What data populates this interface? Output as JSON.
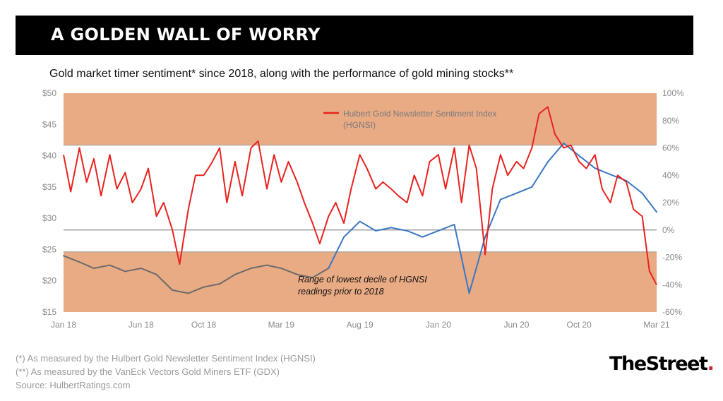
{
  "header": {
    "title": "A GOLDEN WALL OF WORRY",
    "subtitle": "Gold market timer sentiment* since 2018, along with the performance of gold mining stocks**"
  },
  "footer": {
    "notes": [
      "(*) As measured by the Hulbert Gold Newsletter Sentiment Index (HGNSI)",
      "(**) As measured by the VanEck Vectors Gold Miners ETF (GDX)",
      "Source: HulbertRatings.com"
    ],
    "logo_text": "TheStreet",
    "logo_dot": "."
  },
  "chart_data": {
    "type": "line",
    "x_axis": {
      "unit": "month",
      "range": [
        "2018-01-01",
        "2021-03-01"
      ],
      "tick_labels": [
        "Jan 18",
        "Jun 18",
        "Oct 18",
        "Mar 19",
        "Aug 19",
        "Jan 20",
        "Jun 20",
        "Oct 20",
        "Mar 21"
      ],
      "tick_dates": [
        "2018-01-01",
        "2018-06-01",
        "2018-10-01",
        "2019-03-01",
        "2019-08-01",
        "2020-01-01",
        "2020-06-01",
        "2020-10-01",
        "2021-03-01"
      ]
    },
    "y_left": {
      "tick_labels": [
        "$50",
        "$45",
        "$40",
        "$35",
        "$30",
        "$25",
        "$20",
        "$15"
      ],
      "range": [
        15,
        50
      ]
    },
    "y_right": {
      "tick_labels": [
        "100%",
        "80%",
        "60%",
        "40%",
        "20%",
        "0%",
        "-20%",
        "-40%",
        "-60%"
      ],
      "range": [
        -60,
        100
      ]
    },
    "bands": [
      {
        "from": 62,
        "to": 100,
        "color": "#e9ab84",
        "axis": "right"
      },
      {
        "from": -60,
        "to": -16,
        "color": "#e9ab84",
        "axis": "right",
        "label": "Range of lowest decile of HGNSI readings prior to 2018"
      }
    ],
    "zero_line": 0,
    "legend_position": "top-center",
    "series": [
      {
        "name": "Hulbert Gold Newsletter Sentiment Index (HGNSI)",
        "axis": "right",
        "color": "#e8231f",
        "x": [
          "2018-01-01",
          "2018-01-15",
          "2018-02-01",
          "2018-02-15",
          "2018-03-01",
          "2018-03-15",
          "2018-04-01",
          "2018-04-15",
          "2018-05-01",
          "2018-05-15",
          "2018-06-01",
          "2018-06-15",
          "2018-07-01",
          "2018-07-15",
          "2018-08-01",
          "2018-08-15",
          "2018-09-01",
          "2018-09-15",
          "2018-10-01",
          "2018-10-15",
          "2018-11-01",
          "2018-11-15",
          "2018-12-01",
          "2018-12-15",
          "2019-01-01",
          "2019-01-15",
          "2019-02-01",
          "2019-02-15",
          "2019-03-01",
          "2019-03-15",
          "2019-04-01",
          "2019-04-15",
          "2019-05-01",
          "2019-05-15",
          "2019-06-01",
          "2019-06-15",
          "2019-07-01",
          "2019-07-15",
          "2019-08-01",
          "2019-08-15",
          "2019-09-01",
          "2019-09-15",
          "2019-10-01",
          "2019-10-15",
          "2019-11-01",
          "2019-11-15",
          "2019-12-01",
          "2019-12-15",
          "2020-01-01",
          "2020-01-15",
          "2020-02-01",
          "2020-02-15",
          "2020-03-01",
          "2020-03-15",
          "2020-04-01",
          "2020-04-15",
          "2020-05-01",
          "2020-05-15",
          "2020-06-01",
          "2020-06-15",
          "2020-07-01",
          "2020-07-15",
          "2020-08-01",
          "2020-08-15",
          "2020-09-01",
          "2020-09-15",
          "2020-10-01",
          "2020-10-15",
          "2020-11-01",
          "2020-11-15",
          "2020-12-01",
          "2020-12-15",
          "2021-01-01",
          "2021-01-15",
          "2021-02-01",
          "2021-02-15",
          "2021-03-01"
        ],
        "values": [
          55,
          28,
          60,
          35,
          52,
          25,
          55,
          30,
          42,
          20,
          30,
          45,
          10,
          20,
          0,
          -25,
          15,
          40,
          40,
          48,
          60,
          20,
          50,
          25,
          60,
          65,
          30,
          55,
          35,
          50,
          35,
          20,
          5,
          -10,
          10,
          20,
          5,
          30,
          55,
          45,
          30,
          35,
          30,
          25,
          20,
          40,
          25,
          50,
          55,
          30,
          60,
          20,
          62,
          45,
          -18,
          30,
          55,
          40,
          50,
          45,
          60,
          85,
          90,
          70,
          60,
          62,
          50,
          45,
          55,
          30,
          20,
          40,
          35,
          15,
          10,
          -30,
          -40
        ]
      },
      {
        "name": "",
        "axis": "left",
        "color": "#3a78c4",
        "line_segments_colored_grey_when_in_lower_band": true,
        "x": [
          "2018-01-01",
          "2018-02-01",
          "2018-03-01",
          "2018-04-01",
          "2018-05-01",
          "2018-06-01",
          "2018-07-01",
          "2018-08-01",
          "2018-09-01",
          "2018-10-01",
          "2018-11-01",
          "2018-12-01",
          "2019-01-01",
          "2019-02-01",
          "2019-03-01",
          "2019-04-01",
          "2019-05-01",
          "2019-06-01",
          "2019-07-01",
          "2019-08-01",
          "2019-09-01",
          "2019-10-01",
          "2019-11-01",
          "2019-12-01",
          "2020-01-01",
          "2020-02-01",
          "2020-03-01",
          "2020-04-01",
          "2020-05-01",
          "2020-06-01",
          "2020-07-01",
          "2020-08-01",
          "2020-09-01",
          "2020-10-01",
          "2020-11-01",
          "2020-12-01",
          "2021-01-01",
          "2021-02-01",
          "2021-03-01"
        ],
        "values": [
          24,
          23,
          22,
          22.5,
          21.5,
          22,
          21,
          18.5,
          18,
          19,
          19.5,
          21,
          22,
          22.5,
          22,
          21,
          20.5,
          22,
          27,
          29.5,
          28,
          28.5,
          28,
          27,
          28,
          29,
          18,
          27,
          33,
          34,
          35,
          39,
          42,
          40,
          38,
          37,
          36,
          34,
          31
        ]
      }
    ],
    "annotations": [
      "Range of lowest decile of HGNSI",
      "readings prior to 2018"
    ]
  }
}
